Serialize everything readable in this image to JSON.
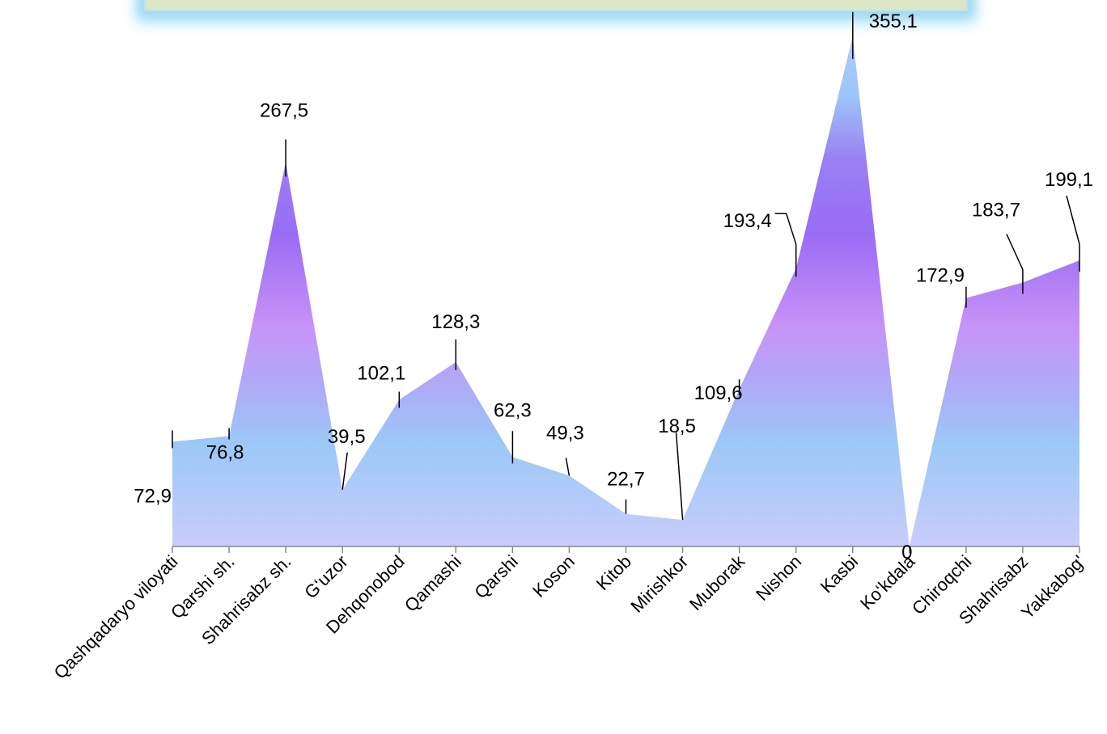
{
  "chart_data": {
    "type": "area",
    "title": "",
    "xlabel": "",
    "ylabel": "",
    "ylim": [
      0,
      380
    ],
    "grid": false,
    "legend": "none",
    "categories": [
      "Qashqadaryo viloyati",
      "Qarshi sh.",
      "Shahrisabz sh.",
      "G‘uzor",
      "Dehqonobod",
      "Qamashi",
      "Qarshi",
      "Koson",
      "Kitob",
      "Mirishkor",
      "Muborak",
      "Nishon",
      "Kasbi",
      "Ko‘kdala",
      "Chiroqchi",
      "Shahrisabz",
      "Yakkabog'"
    ],
    "values": [
      72.9,
      76.8,
      267.5,
      39.5,
      102.1,
      128.3,
      62.3,
      49.3,
      22.7,
      18.5,
      109.6,
      193.4,
      355.1,
      0,
      172.9,
      183.7,
      199.1
    ],
    "value_labels": [
      "72,9",
      "76,8",
      "267,5",
      "39,5",
      "102,1",
      "128,3",
      "62,3",
      "49,3",
      "22,7",
      "18,5",
      "109,6",
      "193,4",
      "355,1",
      "0",
      "172,9",
      "183,7",
      "199,1"
    ],
    "colors": {
      "fill_top": "#aecbfa",
      "fill_mid_purple": "#9a6cf5",
      "fill_light_purple": "#c793f7",
      "fill_blue": "#9cc8f7",
      "fill_bottom": "#c9cdfb",
      "banner_fill": "#dbe7c6",
      "banner_glow": "#9fd8f3",
      "axis": "#888888",
      "label_leader": "#000000"
    }
  }
}
